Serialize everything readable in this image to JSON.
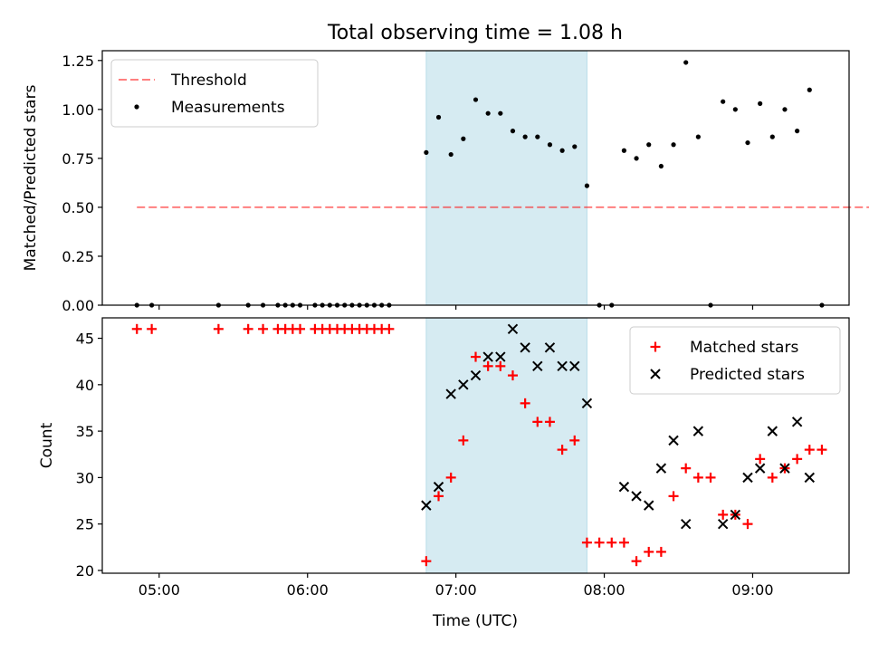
{
  "chart_data": {
    "title": "Total observing time = 1.08 h",
    "xlabel": "Time (UTC)",
    "x_tick_labels": [
      "05:00",
      "06:00",
      "07:00",
      "08:00",
      "09:00"
    ],
    "x_ticks": [
      "05:00",
      "06:00",
      "07:00",
      "08:00",
      "09:00"
    ],
    "xlim": [
      "04:37",
      "09:39"
    ],
    "highlight_span": [
      "06:48",
      "07:53"
    ],
    "highlight_color": "#add8e6",
    "panels": [
      {
        "type": "scatter",
        "ylabel": "Matched/Predicted stars",
        "ylim": [
          0,
          1.3
        ],
        "y_ticks": [
          0,
          0.25,
          0.5,
          0.75,
          1.0,
          1.25
        ],
        "y_tick_labels": [
          "0.00",
          "0.25",
          "0.50",
          "0.75",
          "1.00",
          "1.25"
        ],
        "legend_position": "top-left",
        "threshold": {
          "name": "Threshold",
          "y": 0.5,
          "x_range": [
            "04:51",
            "09:48"
          ],
          "color": "#ff0000",
          "style": "dashed",
          "alpha": 0.5
        },
        "series": [
          {
            "name": "Measurements",
            "marker": "dot",
            "color": "#000000",
            "points": [
              [
                "04:51",
                0.0
              ],
              [
                "04:57",
                0.0
              ],
              [
                "05:24",
                0.0
              ],
              [
                "05:36",
                0.0
              ],
              [
                "05:42",
                0.0
              ],
              [
                "05:48",
                0.0
              ],
              [
                "05:51",
                0.0
              ],
              [
                "05:54",
                0.0
              ],
              [
                "05:57",
                0.0
              ],
              [
                "06:03",
                0.0
              ],
              [
                "06:06",
                0.0
              ],
              [
                "06:09",
                0.0
              ],
              [
                "06:12",
                0.0
              ],
              [
                "06:15",
                0.0
              ],
              [
                "06:18",
                0.0
              ],
              [
                "06:21",
                0.0
              ],
              [
                "06:24",
                0.0
              ],
              [
                "06:27",
                0.0
              ],
              [
                "06:30",
                0.0
              ],
              [
                "06:33",
                0.0
              ],
              [
                "06:48",
                0.78
              ],
              [
                "06:53",
                0.96
              ],
              [
                "06:58",
                0.77
              ],
              [
                "07:03",
                0.85
              ],
              [
                "07:08",
                1.05
              ],
              [
                "07:13",
                0.98
              ],
              [
                "07:18",
                0.98
              ],
              [
                "07:23",
                0.89
              ],
              [
                "07:28",
                0.86
              ],
              [
                "07:33",
                0.86
              ],
              [
                "07:38",
                0.82
              ],
              [
                "07:43",
                0.79
              ],
              [
                "07:48",
                0.81
              ],
              [
                "07:53",
                0.61
              ],
              [
                "07:58",
                0.0
              ],
              [
                "08:03",
                0.0
              ],
              [
                "08:08",
                0.79
              ],
              [
                "08:13",
                0.75
              ],
              [
                "08:18",
                0.82
              ],
              [
                "08:23",
                0.71
              ],
              [
                "08:28",
                0.82
              ],
              [
                "08:33",
                1.24
              ],
              [
                "08:38",
                0.86
              ],
              [
                "08:43",
                0.0
              ],
              [
                "08:48",
                1.04
              ],
              [
                "08:53",
                1.0
              ],
              [
                "08:58",
                0.83
              ],
              [
                "09:03",
                1.03
              ],
              [
                "09:08",
                0.86
              ],
              [
                "09:13",
                1.0
              ],
              [
                "09:18",
                0.89
              ],
              [
                "09:23",
                1.1
              ],
              [
                "09:28",
                0.0
              ]
            ]
          }
        ]
      },
      {
        "type": "scatter",
        "ylabel": "Count",
        "ylim": [
          19.7,
          47.2
        ],
        "y_ticks": [
          20,
          25,
          30,
          35,
          40,
          45
        ],
        "y_tick_labels": [
          "20",
          "25",
          "30",
          "35",
          "40",
          "45"
        ],
        "legend_position": "top-right",
        "series": [
          {
            "name": "Matched stars",
            "marker": "plus",
            "color": "#ff0000",
            "points": [
              [
                "04:51",
                46
              ],
              [
                "04:57",
                46
              ],
              [
                "05:24",
                46
              ],
              [
                "05:36",
                46
              ],
              [
                "05:42",
                46
              ],
              [
                "05:48",
                46
              ],
              [
                "05:51",
                46
              ],
              [
                "05:54",
                46
              ],
              [
                "05:57",
                46
              ],
              [
                "06:03",
                46
              ],
              [
                "06:06",
                46
              ],
              [
                "06:09",
                46
              ],
              [
                "06:12",
                46
              ],
              [
                "06:15",
                46
              ],
              [
                "06:18",
                46
              ],
              [
                "06:21",
                46
              ],
              [
                "06:24",
                46
              ],
              [
                "06:27",
                46
              ],
              [
                "06:30",
                46
              ],
              [
                "06:33",
                46
              ],
              [
                "06:48",
                21
              ],
              [
                "06:53",
                28
              ],
              [
                "06:58",
                30
              ],
              [
                "07:03",
                34
              ],
              [
                "07:08",
                43
              ],
              [
                "07:13",
                42
              ],
              [
                "07:18",
                42
              ],
              [
                "07:23",
                41
              ],
              [
                "07:28",
                38
              ],
              [
                "07:33",
                36
              ],
              [
                "07:38",
                36
              ],
              [
                "07:43",
                33
              ],
              [
                "07:48",
                34
              ],
              [
                "07:53",
                23
              ],
              [
                "07:58",
                23
              ],
              [
                "08:03",
                23
              ],
              [
                "08:08",
                23
              ],
              [
                "08:13",
                21
              ],
              [
                "08:18",
                22
              ],
              [
                "08:23",
                22
              ],
              [
                "08:28",
                28
              ],
              [
                "08:33",
                31
              ],
              [
                "08:38",
                30
              ],
              [
                "08:43",
                30
              ],
              [
                "08:48",
                26
              ],
              [
                "08:53",
                26
              ],
              [
                "08:58",
                25
              ],
              [
                "09:03",
                32
              ],
              [
                "09:08",
                30
              ],
              [
                "09:13",
                31
              ],
              [
                "09:18",
                32
              ],
              [
                "09:23",
                33
              ],
              [
                "09:28",
                33
              ]
            ]
          },
          {
            "name": "Predicted stars",
            "marker": "x",
            "color": "#000000",
            "points": [
              [
                "06:48",
                27
              ],
              [
                "06:53",
                29
              ],
              [
                "06:58",
                39
              ],
              [
                "07:03",
                40
              ],
              [
                "07:08",
                41
              ],
              [
                "07:13",
                43
              ],
              [
                "07:18",
                43
              ],
              [
                "07:23",
                46
              ],
              [
                "07:28",
                44
              ],
              [
                "07:33",
                42
              ],
              [
                "07:38",
                44
              ],
              [
                "07:43",
                42
              ],
              [
                "07:48",
                42
              ],
              [
                "07:53",
                38
              ],
              [
                "08:08",
                29
              ],
              [
                "08:13",
                28
              ],
              [
                "08:18",
                27
              ],
              [
                "08:23",
                31
              ],
              [
                "08:28",
                34
              ],
              [
                "08:33",
                25
              ],
              [
                "08:38",
                35
              ],
              [
                "08:48",
                25
              ],
              [
                "08:53",
                26
              ],
              [
                "08:58",
                30
              ],
              [
                "09:03",
                31
              ],
              [
                "09:08",
                35
              ],
              [
                "09:13",
                31
              ],
              [
                "09:18",
                36
              ],
              [
                "09:23",
                30
              ]
            ]
          }
        ]
      }
    ]
  }
}
